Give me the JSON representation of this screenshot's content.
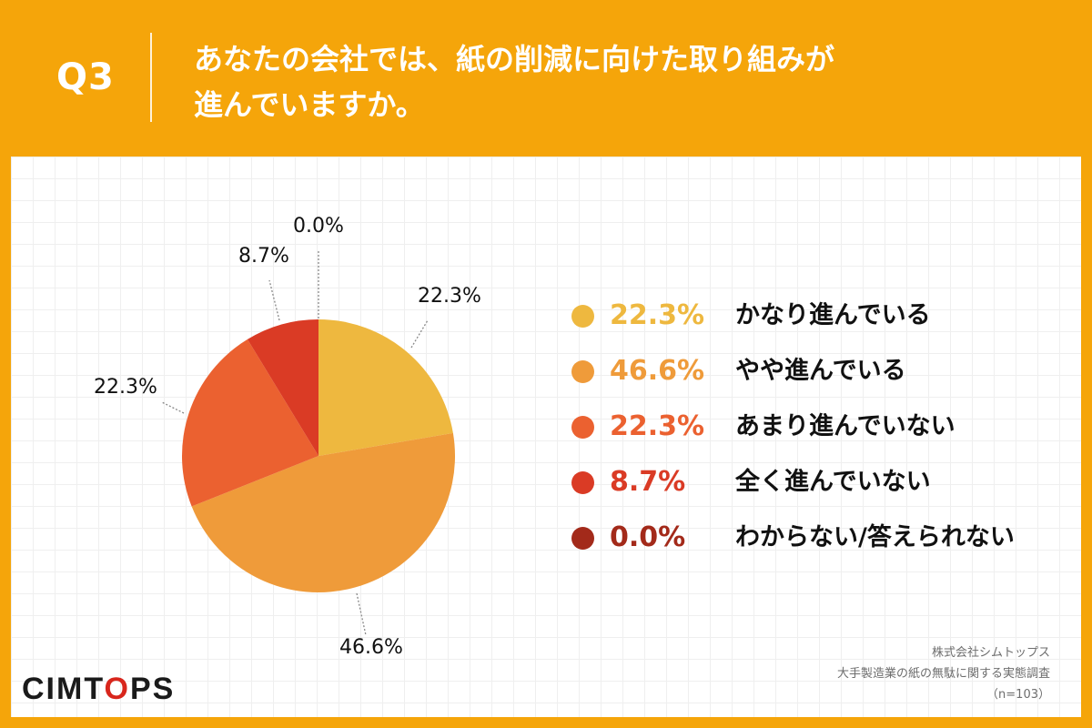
{
  "header": {
    "question_number": "Q3",
    "question_line1": "あなたの会社では、紙の削減に向けた取り組みが",
    "question_line2": "進んでいますか。"
  },
  "colors": {
    "background": "#f5a50a",
    "slice_colors": [
      "#eeb83f",
      "#ef9b3a",
      "#eb6130",
      "#da3b25",
      "#a32a1a"
    ],
    "label_text": "#111111",
    "leader_line": "#888888"
  },
  "chart_data": {
    "type": "pie",
    "title": "",
    "slices": [
      {
        "label": "かなり進んでいる",
        "value": 22.3,
        "pct_label": "22.3%"
      },
      {
        "label": "やや進んでいる",
        "value": 46.6,
        "pct_label": "46.6%"
      },
      {
        "label": "あまり進んでいない",
        "value": 22.3,
        "pct_label": "22.3%"
      },
      {
        "label": "全く進んでいない",
        "value": 8.7,
        "pct_label": "8.7%"
      },
      {
        "label": "わからない/答えられない",
        "value": 0.0,
        "pct_label": "0.0%"
      }
    ],
    "start_angle": "12 o'clock",
    "direction": "clockwise",
    "legend_placement": "right"
  },
  "footer": {
    "logo": "CIMTOPS",
    "source_company": "株式会社シムトップス",
    "source_survey": "大手製造業の紙の無駄に関する実態調査",
    "sample_size": "（n=103）"
  }
}
